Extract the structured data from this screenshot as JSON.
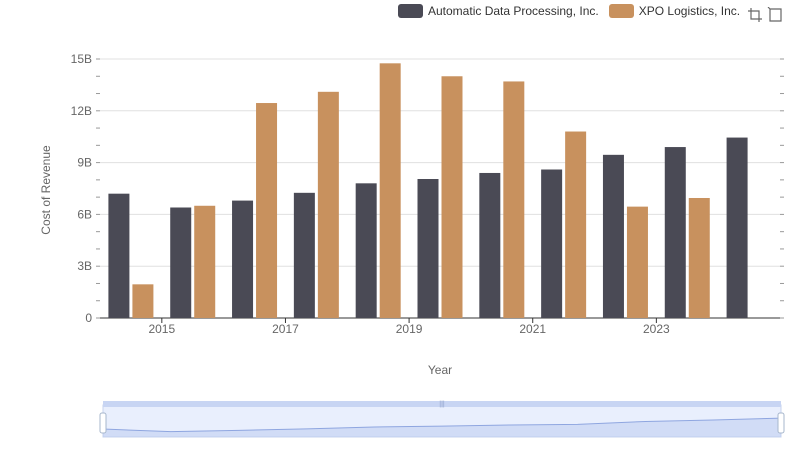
{
  "chart_data": {
    "type": "bar",
    "ylabel": "Cost of Revenue",
    "xlabel": "Year",
    "categories": [
      "2014",
      "2015",
      "2016",
      "2017",
      "2018",
      "2019",
      "2020",
      "2021",
      "2022",
      "2023",
      "2024"
    ],
    "x_tick_labels": [
      "2015",
      "2017",
      "2019",
      "2021",
      "2023"
    ],
    "y_tick_labels": [
      "0",
      "3B",
      "6B",
      "9B",
      "12B",
      "15B"
    ],
    "ylim": [
      0,
      15000000000
    ],
    "grid": true,
    "legend_position": "top-right",
    "series": [
      {
        "name": "Automatic Data Processing, Inc.",
        "color": "#4a4a55",
        "values": [
          7200000000,
          6400000000,
          6800000000,
          7250000000,
          7800000000,
          8050000000,
          8400000000,
          8600000000,
          9450000000,
          9900000000,
          10450000000
        ]
      },
      {
        "name": "XPO Logistics, Inc.",
        "color": "#c8915e",
        "values": [
          1950000000,
          6500000000,
          12450000000,
          13100000000,
          14750000000,
          14000000000,
          13700000000,
          10800000000,
          6450000000,
          6950000000,
          null
        ]
      }
    ]
  },
  "toolbox": {
    "zoom_icon": "zoom-icon",
    "restore_icon": "restore-icon"
  },
  "datazoom": {
    "range_start_percent": 0,
    "range_end_percent": 100
  }
}
